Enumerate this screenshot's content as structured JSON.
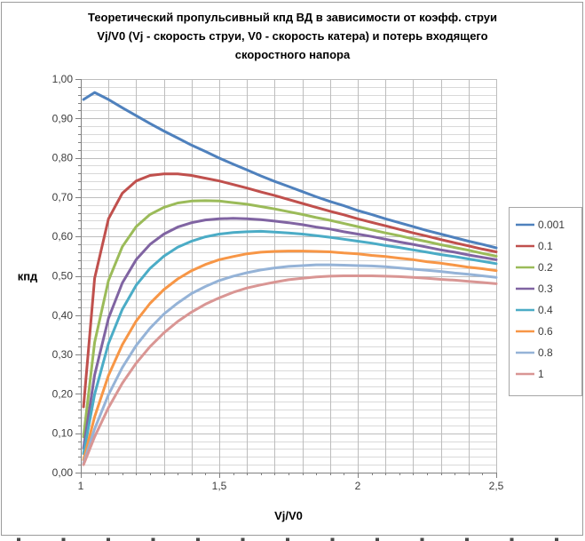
{
  "chart_data": {
    "type": "line",
    "title": "Теоретический пропульсивный кпд ВД в зависимости от коэфф. струи Vj/V0 (Vj - скорость струи, V0 - скорость катера) и потерь входящего скоростного напора",
    "title_lines": [
      "Теоретический пропульсивный кпд ВД в зависимости от коэфф. струи",
      "Vj/V0 (Vj - скорость струи, V0 - скорость катера) и потерь входящего",
      "скоростного напора"
    ],
    "xlabel": "Vj/V0",
    "ylabel": "кпд",
    "xlim": [
      1.0,
      2.5
    ],
    "ylim": [
      0.0,
      1.0
    ],
    "grid": true,
    "legend_position": "right",
    "x_tick_values": [
      1.0,
      1.5,
      2.0,
      2.5
    ],
    "x_tick_labels": [
      "1",
      "1,5",
      "2",
      "2,5"
    ],
    "y_tick_values": [
      0.0,
      0.1,
      0.2,
      0.3,
      0.4,
      0.5,
      0.6,
      0.7,
      0.8,
      0.9,
      1.0
    ],
    "y_tick_labels": [
      "0,00",
      "0,10",
      "0,20",
      "0,30",
      "0,40",
      "0,50",
      "0,60",
      "0,70",
      "0,80",
      "0,90",
      "1,00"
    ],
    "x_minor_step": 0.05,
    "y_minor_step": 0.02,
    "x_grid_step": 0.1,
    "x": [
      1.01,
      1.05,
      1.1,
      1.15,
      1.2,
      1.25,
      1.3,
      1.35,
      1.4,
      1.45,
      1.5,
      1.55,
      1.6,
      1.65,
      1.7,
      1.75,
      1.8,
      1.85,
      1.9,
      1.95,
      2.0,
      2.05,
      2.1,
      2.15,
      2.2,
      2.25,
      2.3,
      2.35,
      2.4,
      2.45,
      2.5
    ],
    "series": [
      {
        "name": "0.001",
        "color": "#4F81BD",
        "values": [
          0.948,
          0.966,
          0.948,
          0.927,
          0.907,
          0.887,
          0.868,
          0.85,
          0.832,
          0.816,
          0.799,
          0.784,
          0.769,
          0.754,
          0.74,
          0.727,
          0.714,
          0.701,
          0.689,
          0.678,
          0.666,
          0.656,
          0.645,
          0.635,
          0.625,
          0.615,
          0.606,
          0.597,
          0.588,
          0.58,
          0.571
        ]
      },
      {
        "name": "0.1",
        "color": "#C0504D",
        "values": [
          0.167,
          0.494,
          0.645,
          0.71,
          0.741,
          0.755,
          0.759,
          0.759,
          0.755,
          0.748,
          0.741,
          0.732,
          0.723,
          0.713,
          0.704,
          0.694,
          0.684,
          0.674,
          0.664,
          0.655,
          0.645,
          0.636,
          0.627,
          0.618,
          0.609,
          0.601,
          0.592,
          0.584,
          0.576,
          0.568,
          0.561
        ]
      },
      {
        "name": "0.2",
        "color": "#9BBB59",
        "values": [
          0.091,
          0.331,
          0.488,
          0.574,
          0.625,
          0.656,
          0.674,
          0.685,
          0.69,
          0.691,
          0.69,
          0.686,
          0.682,
          0.676,
          0.67,
          0.663,
          0.656,
          0.648,
          0.641,
          0.633,
          0.625,
          0.617,
          0.609,
          0.602,
          0.594,
          0.587,
          0.579,
          0.572,
          0.565,
          0.557,
          0.55
        ]
      },
      {
        "name": "0.3",
        "color": "#8064A2",
        "values": [
          0.062,
          0.248,
          0.392,
          0.482,
          0.541,
          0.58,
          0.606,
          0.624,
          0.635,
          0.642,
          0.645,
          0.646,
          0.645,
          0.643,
          0.639,
          0.635,
          0.63,
          0.624,
          0.619,
          0.612,
          0.606,
          0.6,
          0.593,
          0.586,
          0.58,
          0.573,
          0.566,
          0.56,
          0.553,
          0.547,
          0.541
        ]
      },
      {
        "name": "0.4",
        "color": "#4BACC6",
        "values": [
          0.048,
          0.199,
          0.328,
          0.415,
          0.476,
          0.519,
          0.55,
          0.573,
          0.588,
          0.599,
          0.606,
          0.61,
          0.612,
          0.613,
          0.611,
          0.609,
          0.606,
          0.602,
          0.598,
          0.593,
          0.588,
          0.583,
          0.577,
          0.572,
          0.566,
          0.56,
          0.554,
          0.549,
          0.543,
          0.537,
          0.531
        ]
      },
      {
        "name": "0.6",
        "color": "#F79646",
        "values": [
          0.032,
          0.142,
          0.247,
          0.325,
          0.385,
          0.43,
          0.465,
          0.492,
          0.513,
          0.529,
          0.541,
          0.549,
          0.556,
          0.56,
          0.562,
          0.563,
          0.563,
          0.562,
          0.561,
          0.558,
          0.556,
          0.552,
          0.549,
          0.545,
          0.541,
          0.536,
          0.532,
          0.527,
          0.522,
          0.518,
          0.513
        ]
      },
      {
        "name": "0.8",
        "color": "#95B3D7",
        "values": [
          0.024,
          0.111,
          0.198,
          0.267,
          0.323,
          0.367,
          0.403,
          0.431,
          0.455,
          0.473,
          0.488,
          0.499,
          0.508,
          0.515,
          0.52,
          0.524,
          0.526,
          0.528,
          0.528,
          0.527,
          0.526,
          0.525,
          0.523,
          0.52,
          0.517,
          0.514,
          0.511,
          0.507,
          0.504,
          0.5,
          0.496
        ]
      },
      {
        "name": "1",
        "color": "#D99694",
        "values": [
          0.02,
          0.091,
          0.165,
          0.227,
          0.278,
          0.32,
          0.355,
          0.384,
          0.408,
          0.428,
          0.444,
          0.458,
          0.469,
          0.477,
          0.484,
          0.49,
          0.494,
          0.497,
          0.499,
          0.5,
          0.5,
          0.5,
          0.499,
          0.498,
          0.496,
          0.494,
          0.491,
          0.489,
          0.486,
          0.483,
          0.48
        ]
      }
    ]
  },
  "colors": {
    "axis": "#808080",
    "grid_minor": "#d9d9d9",
    "grid_major": "#bdbdbd",
    "tick_text": "#3c3c3c",
    "title_text": "#000000",
    "legend_border": "#a6a6a6",
    "outer_border": "#9b9b9b",
    "cropped_marks": "#4a4a4a",
    "background": "#ffffff"
  }
}
